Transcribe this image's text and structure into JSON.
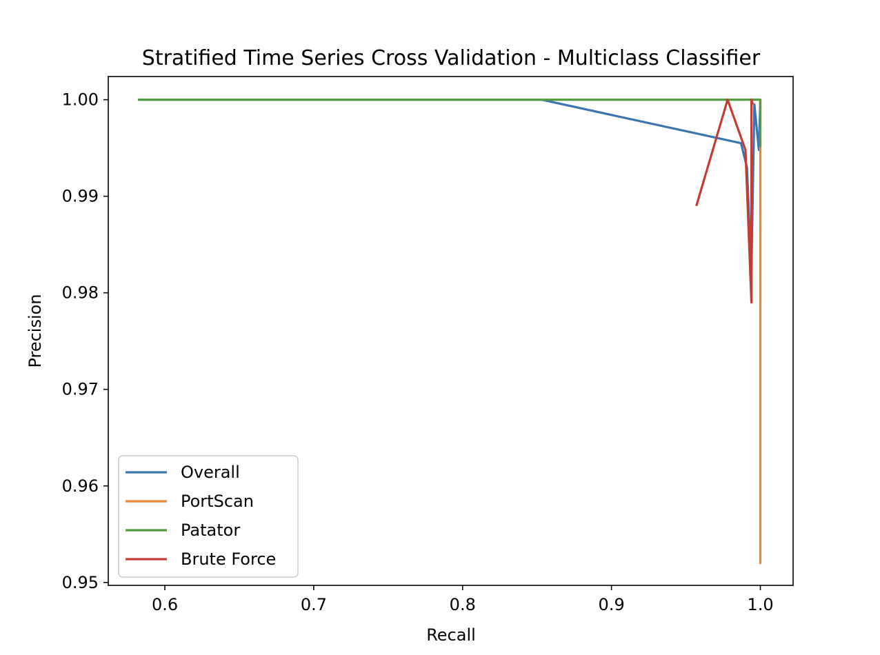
{
  "chart_data": {
    "type": "line",
    "title": "Stratified Time Series Cross Validation - Multiclass Classifier",
    "xlabel": "Recall",
    "ylabel": "Precision",
    "xlim": [
      0.562,
      1.022
    ],
    "ylim": [
      0.9497,
      1.0024
    ],
    "xticks": [
      0.6,
      0.7,
      0.8,
      0.9,
      1.0
    ],
    "xtick_labels": [
      "0.6",
      "0.7",
      "0.8",
      "0.9",
      "1.0"
    ],
    "yticks": [
      0.95,
      0.96,
      0.97,
      0.98,
      0.99,
      1.0
    ],
    "ytick_labels": [
      "0.95",
      "0.96",
      "0.97",
      "0.98",
      "0.99",
      "1.00"
    ],
    "grid": false,
    "legend_position": "lower-left",
    "series": [
      {
        "name": "Overall",
        "color": "#3b75af",
        "points": [
          [
            0.582,
            1.0
          ],
          [
            0.853,
            1.0
          ],
          [
            0.987,
            0.9955
          ],
          [
            0.991,
            0.993
          ],
          [
            0.994,
            0.9822
          ],
          [
            0.996,
            0.9995
          ],
          [
            0.999,
            0.9948
          ],
          [
            1.0,
            1.0
          ]
        ]
      },
      {
        "name": "PortScan",
        "color": "#ef8636",
        "points": [
          [
            1.0,
            1.0
          ],
          [
            1.0,
            0.952
          ],
          [
            1.0,
            0.9955
          ],
          [
            1.0,
            1.0
          ]
        ]
      },
      {
        "name": "Patator",
        "color": "#519e3e",
        "points": [
          [
            0.582,
            1.0
          ],
          [
            1.0,
            1.0
          ],
          [
            1.0,
            0.9952
          ],
          [
            1.0,
            1.0
          ]
        ]
      },
      {
        "name": "Brute Force",
        "color": "#c53a32",
        "points": [
          [
            0.957,
            0.989
          ],
          [
            0.978,
            1.0
          ],
          [
            0.99,
            0.9948
          ],
          [
            0.994,
            0.979
          ],
          [
            0.994,
            1.0
          ],
          [
            0.995,
            0.9995
          ]
        ]
      }
    ]
  }
}
